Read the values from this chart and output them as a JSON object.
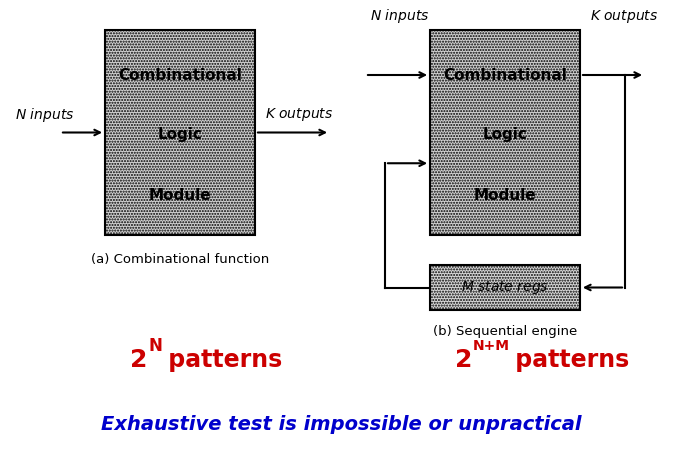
{
  "bg_color": "#ffffff",
  "title_bottom": "Exhaustive test is impossible or unpractical",
  "title_bottom_color": "#0000cc",
  "label_a": "(a) Combinational function",
  "label_b": "(b) Sequential engine",
  "pattern_color": "#cc0000",
  "clm_text": [
    "Combinational",
    "Logic",
    "Module"
  ],
  "state_text": "M state regs",
  "box_facecolor": "#d0d0d0",
  "state_facecolor": "#d8d8d8"
}
